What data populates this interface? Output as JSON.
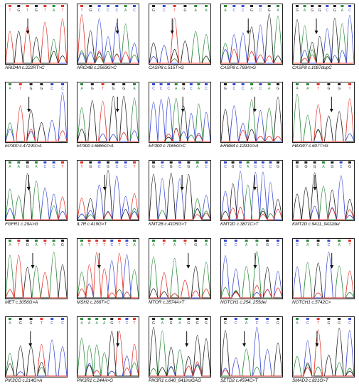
{
  "panels": [
    {
      "label": "ARID4A c.222RT>C",
      "bases": "T G T G T A T"
    },
    {
      "label": "ARID4B c.2563G>C",
      "bases": "T G C C C A C"
    },
    {
      "label": "CASP8 c.515T>G",
      "bases": "G C T G A A"
    },
    {
      "label": "CASP8 c.769A>G",
      "bases": "A C C G C G A"
    },
    {
      "label": "CASP8 c.1087dupC",
      "bases": "G A G G C G A C"
    },
    {
      "label": "EP300 c.4719G>A",
      "bases": "A T G G C C"
    },
    {
      "label": "EP300 c.6865G>A",
      "bases": "A G T G G A"
    },
    {
      "label": "EP300 c.7065G>C",
      "bases": "C C C A G C A C"
    },
    {
      "label": "ERBB4 c.1291G>A",
      "bases": "G C C A C A G"
    },
    {
      "label": "FBXW7 c.607T>G",
      "bases": "A A T G G T"
    },
    {
      "label": "FGFR1 c.29A>G",
      "bases": "A A G A C C T"
    },
    {
      "label": "IL7R c.419G>T",
      "bases": "T G C G C C T"
    },
    {
      "label": "KMT2B c.4105G>T",
      "bases": "G C G C G A C"
    },
    {
      "label": "KMT2D c.3871C>T",
      "bases": "C G C A C C C G"
    },
    {
      "label": "KMT2D c.9411_9412del",
      "bases": "G G G A G C G"
    },
    {
      "label": "MET c.3056G>A",
      "bases": "A T G A T A G"
    },
    {
      "label": "MSH2 c.266T>C",
      "bases": "A T T T C T C A"
    },
    {
      "label": "MTOR c.3574A>T",
      "bases": "A T A T G A"
    },
    {
      "label": "NOTCH1 c.254_255del",
      "bases": "C C A A G C"
    },
    {
      "label": "NOTCH1 c.5742C>",
      "bases": "C A G C A T"
    },
    {
      "label": "PIK3CG c.214G>A",
      "bases": "A G G T C C"
    },
    {
      "label": "PIK3R1 c.244A>G",
      "bases": "A A A A G T C T"
    },
    {
      "label": "PIK3R1 c.640_641insGAG",
      "bases": "G A G A G G G"
    },
    {
      "label": "SETD2 c.4594C>T",
      "bases": "G C A C C G"
    },
    {
      "label": "SMAD3 c.821G>T",
      "bases": "A C T G G C"
    }
  ],
  "colors": {
    "A": "#2e8b3e",
    "C": "#3b4bd1",
    "G": "#222222",
    "T": "#e0342a",
    "N": "#b38ad6"
  }
}
